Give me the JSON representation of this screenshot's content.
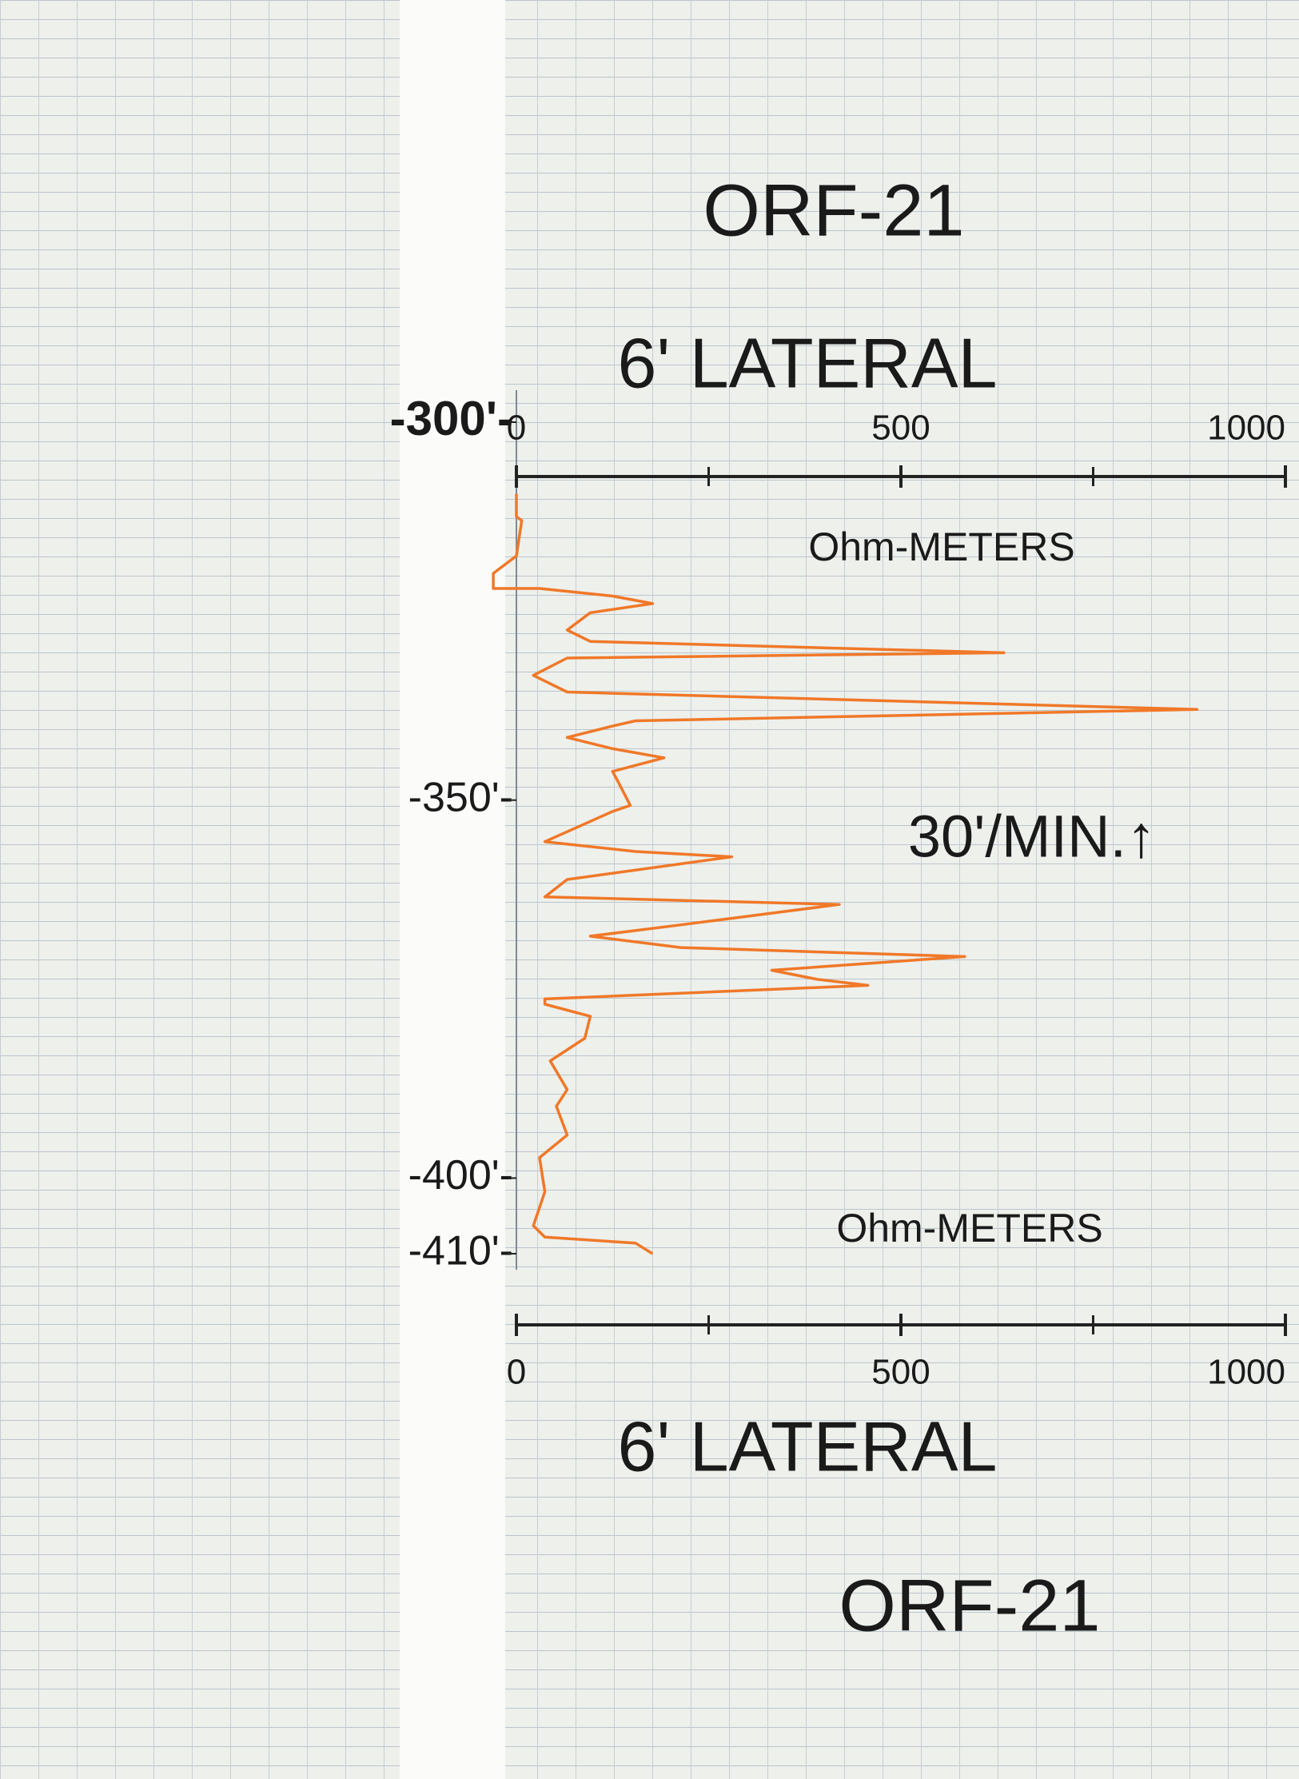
{
  "chart_data": {
    "type": "line",
    "title": "ORF-21",
    "subtitle": "6' LATERAL",
    "x_label": "Ohm-METERS",
    "annotation": "30'/MIN.↑",
    "xlim": [
      0,
      1000
    ],
    "xticks": [
      0,
      500,
      1000
    ],
    "xminor_ticks": [
      250,
      750
    ],
    "ylim": [
      300,
      410
    ],
    "y_reversed": true,
    "yticks": [
      {
        "value": 300,
        "label": "-300'-"
      },
      {
        "value": 350,
        "label": "-350'-"
      },
      {
        "value": 400,
        "label": "-400'-"
      },
      {
        "value": 410,
        "label": "-410'-"
      }
    ],
    "series": [
      {
        "color": "#f07828",
        "depth": [
          309.5,
          312.5,
          313,
          317.7,
          320,
          322,
          322,
          323,
          324,
          325.2,
          327.5,
          329,
          330.5,
          331.2,
          333.5,
          335.7,
          338,
          339.5,
          340.2,
          341.7,
          343.2,
          344.4,
          346.2,
          347.7,
          350.7,
          351.5,
          355.5,
          356.8,
          357.5,
          360.5,
          362.8,
          363.8,
          366.5,
          368,
          369.5,
          370.7,
          372.5,
          373.7,
          374.5,
          376.3,
          377,
          378.6,
          381.5,
          384.5,
          388.3,
          390.5,
          394.3,
          397.3,
          401.8,
          406.3,
          407.8,
          408.6,
          410
        ],
        "values": [
          0,
          0,
          7,
          0,
          -30,
          -30,
          30,
          125,
          177,
          96,
          66,
          96,
          634,
          66,
          22,
          66,
          885,
          155,
          125,
          66,
          125,
          192,
          125,
          133,
          148,
          125,
          37,
          155,
          280,
          66,
          37,
          420,
          214,
          96,
          214,
          583,
          332,
          391,
          457,
          37,
          37,
          96,
          89,
          44,
          66,
          52,
          66,
          30,
          37,
          22,
          37,
          155,
          177
        ]
      }
    ]
  }
}
